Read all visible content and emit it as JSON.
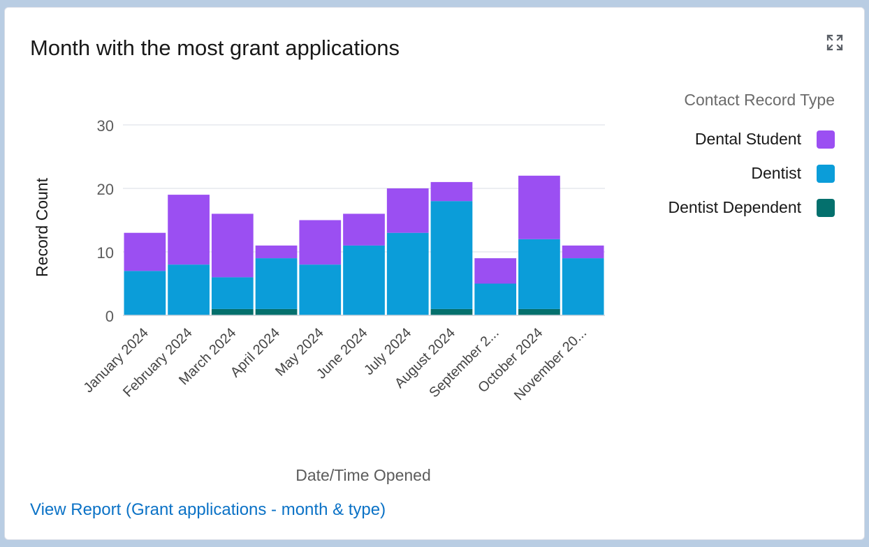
{
  "card": {
    "title": "Month with the most grant applications",
    "expand_icon": "expand-icon",
    "report_link": "View Report (Grant applications - month & type)"
  },
  "chart_data": {
    "type": "bar",
    "stacked": true,
    "categories": [
      "January 2024",
      "February 2024",
      "March 2024",
      "April 2024",
      "May 2024",
      "June 2024",
      "July 2024",
      "August 2024",
      "September 2...",
      "October 2024",
      "November 20..."
    ],
    "series": [
      {
        "name": "Dentist Dependent",
        "color": "#04706d",
        "values": [
          0,
          0,
          1,
          1,
          0,
          0,
          0,
          1,
          0,
          1,
          0
        ]
      },
      {
        "name": "Dentist",
        "color": "#0b9dd9",
        "values": [
          7,
          8,
          5,
          8,
          8,
          11,
          13,
          17,
          5,
          11,
          9
        ]
      },
      {
        "name": "Dental Student",
        "color": "#9b4ff2",
        "values": [
          6,
          11,
          10,
          2,
          7,
          5,
          7,
          3,
          4,
          10,
          2
        ]
      }
    ],
    "xlabel": "Date/Time Opened",
    "ylabel": "Record Count",
    "yticks": [
      0,
      10,
      20,
      30
    ],
    "ylim": [
      0,
      30
    ],
    "grid": true,
    "legend": {
      "title": "Contact Record Type",
      "position": "top-right",
      "items": [
        {
          "name": "Dental Student",
          "color": "#9b4ff2"
        },
        {
          "name": "Dentist",
          "color": "#0b9dd9"
        },
        {
          "name": "Dentist Dependent",
          "color": "#04706d"
        }
      ]
    }
  }
}
